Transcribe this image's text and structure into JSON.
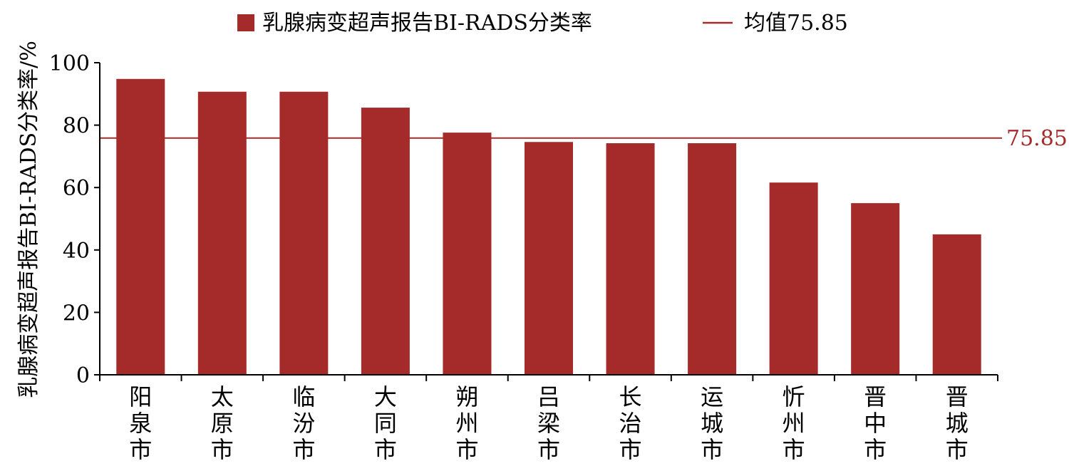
{
  "chart_data": {
    "type": "bar",
    "categories": [
      "阳泉市",
      "太原市",
      "临汾市",
      "大同市",
      "朔州市",
      "吕梁市",
      "长治市",
      "运城市",
      "忻州市",
      "晋中市",
      "晋城市"
    ],
    "series": [
      {
        "name": "乳腺病变超声报告BI-RADS分类率",
        "values": [
          94.8,
          90.7,
          90.7,
          85.6,
          77.6,
          74.6,
          74.2,
          74.2,
          61.6,
          55.0,
          45.0
        ]
      }
    ],
    "reference_line": {
      "name": "均值75.85",
      "value": 75.85,
      "label": "75.85"
    },
    "ylabel": "乳腺病变超声报告BI-RADS分类率/%",
    "xlabel": "",
    "ylim": [
      0,
      100
    ],
    "yticks": [
      "0",
      "20",
      "40",
      "60",
      "80",
      "100"
    ],
    "grid": false,
    "legend_position": "top",
    "colors": {
      "bar": "#a52a2a",
      "mean_line": "#a52a2a",
      "text": "#000000"
    }
  }
}
